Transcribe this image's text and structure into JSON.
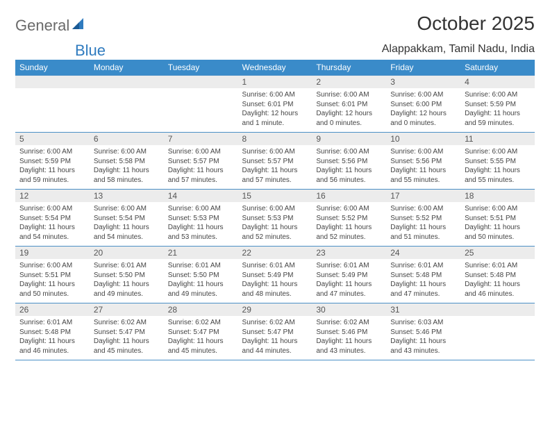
{
  "brand": {
    "name1": "General",
    "name2": "Blue"
  },
  "title": "October 2025",
  "location": "Alappakkam, Tamil Nadu, India",
  "colors": {
    "header_bg": "#3a8bc9",
    "header_text": "#ffffff",
    "daynum_bg": "#ececec",
    "border": "#4a8fc6",
    "text": "#444444",
    "brand_gray": "#6a6a6a",
    "brand_blue": "#2f7bbf"
  },
  "dayNames": [
    "Sunday",
    "Monday",
    "Tuesday",
    "Wednesday",
    "Thursday",
    "Friday",
    "Saturday"
  ],
  "weeks": [
    [
      {
        "n": "",
        "sr": "",
        "ss": "",
        "dl": ""
      },
      {
        "n": "",
        "sr": "",
        "ss": "",
        "dl": ""
      },
      {
        "n": "",
        "sr": "",
        "ss": "",
        "dl": ""
      },
      {
        "n": "1",
        "sr": "6:00 AM",
        "ss": "6:01 PM",
        "dl": "12 hours and 1 minute."
      },
      {
        "n": "2",
        "sr": "6:00 AM",
        "ss": "6:01 PM",
        "dl": "12 hours and 0 minutes."
      },
      {
        "n": "3",
        "sr": "6:00 AM",
        "ss": "6:00 PM",
        "dl": "12 hours and 0 minutes."
      },
      {
        "n": "4",
        "sr": "6:00 AM",
        "ss": "5:59 PM",
        "dl": "11 hours and 59 minutes."
      }
    ],
    [
      {
        "n": "5",
        "sr": "6:00 AM",
        "ss": "5:59 PM",
        "dl": "11 hours and 59 minutes."
      },
      {
        "n": "6",
        "sr": "6:00 AM",
        "ss": "5:58 PM",
        "dl": "11 hours and 58 minutes."
      },
      {
        "n": "7",
        "sr": "6:00 AM",
        "ss": "5:57 PM",
        "dl": "11 hours and 57 minutes."
      },
      {
        "n": "8",
        "sr": "6:00 AM",
        "ss": "5:57 PM",
        "dl": "11 hours and 57 minutes."
      },
      {
        "n": "9",
        "sr": "6:00 AM",
        "ss": "5:56 PM",
        "dl": "11 hours and 56 minutes."
      },
      {
        "n": "10",
        "sr": "6:00 AM",
        "ss": "5:56 PM",
        "dl": "11 hours and 55 minutes."
      },
      {
        "n": "11",
        "sr": "6:00 AM",
        "ss": "5:55 PM",
        "dl": "11 hours and 55 minutes."
      }
    ],
    [
      {
        "n": "12",
        "sr": "6:00 AM",
        "ss": "5:54 PM",
        "dl": "11 hours and 54 minutes."
      },
      {
        "n": "13",
        "sr": "6:00 AM",
        "ss": "5:54 PM",
        "dl": "11 hours and 54 minutes."
      },
      {
        "n": "14",
        "sr": "6:00 AM",
        "ss": "5:53 PM",
        "dl": "11 hours and 53 minutes."
      },
      {
        "n": "15",
        "sr": "6:00 AM",
        "ss": "5:53 PM",
        "dl": "11 hours and 52 minutes."
      },
      {
        "n": "16",
        "sr": "6:00 AM",
        "ss": "5:52 PM",
        "dl": "11 hours and 52 minutes."
      },
      {
        "n": "17",
        "sr": "6:00 AM",
        "ss": "5:52 PM",
        "dl": "11 hours and 51 minutes."
      },
      {
        "n": "18",
        "sr": "6:00 AM",
        "ss": "5:51 PM",
        "dl": "11 hours and 50 minutes."
      }
    ],
    [
      {
        "n": "19",
        "sr": "6:00 AM",
        "ss": "5:51 PM",
        "dl": "11 hours and 50 minutes."
      },
      {
        "n": "20",
        "sr": "6:01 AM",
        "ss": "5:50 PM",
        "dl": "11 hours and 49 minutes."
      },
      {
        "n": "21",
        "sr": "6:01 AM",
        "ss": "5:50 PM",
        "dl": "11 hours and 49 minutes."
      },
      {
        "n": "22",
        "sr": "6:01 AM",
        "ss": "5:49 PM",
        "dl": "11 hours and 48 minutes."
      },
      {
        "n": "23",
        "sr": "6:01 AM",
        "ss": "5:49 PM",
        "dl": "11 hours and 47 minutes."
      },
      {
        "n": "24",
        "sr": "6:01 AM",
        "ss": "5:48 PM",
        "dl": "11 hours and 47 minutes."
      },
      {
        "n": "25",
        "sr": "6:01 AM",
        "ss": "5:48 PM",
        "dl": "11 hours and 46 minutes."
      }
    ],
    [
      {
        "n": "26",
        "sr": "6:01 AM",
        "ss": "5:48 PM",
        "dl": "11 hours and 46 minutes."
      },
      {
        "n": "27",
        "sr": "6:02 AM",
        "ss": "5:47 PM",
        "dl": "11 hours and 45 minutes."
      },
      {
        "n": "28",
        "sr": "6:02 AM",
        "ss": "5:47 PM",
        "dl": "11 hours and 45 minutes."
      },
      {
        "n": "29",
        "sr": "6:02 AM",
        "ss": "5:47 PM",
        "dl": "11 hours and 44 minutes."
      },
      {
        "n": "30",
        "sr": "6:02 AM",
        "ss": "5:46 PM",
        "dl": "11 hours and 43 minutes."
      },
      {
        "n": "31",
        "sr": "6:03 AM",
        "ss": "5:46 PM",
        "dl": "11 hours and 43 minutes."
      },
      {
        "n": "",
        "sr": "",
        "ss": "",
        "dl": ""
      }
    ]
  ],
  "labels": {
    "sunrise": "Sunrise: ",
    "sunset": "Sunset: ",
    "daylight": "Daylight: "
  }
}
